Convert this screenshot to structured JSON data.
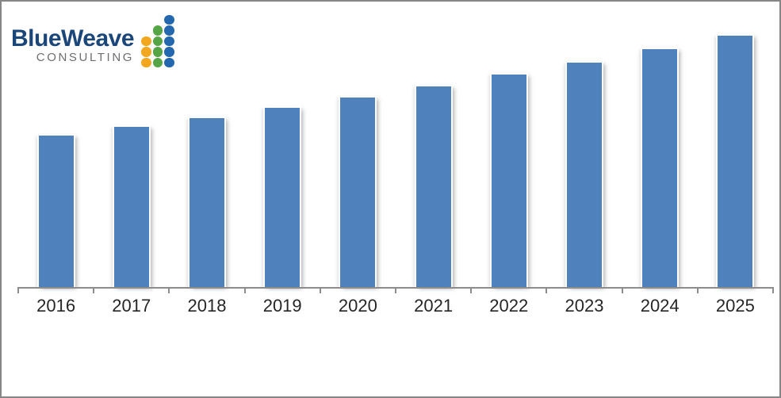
{
  "page": {
    "background": "#ffffff",
    "frame_border_color": "#868686"
  },
  "logo": {
    "brand": "BlueWeave",
    "tagline": "CONSULTING",
    "brand_color": "#1b4679",
    "tagline_color": "#6d6e71",
    "dot_columns": [
      {
        "name": "orange-column",
        "color": "#f2a71e",
        "dots": 3
      },
      {
        "name": "green-column",
        "color": "#55a546",
        "dots": 4
      },
      {
        "name": "blue-column",
        "color": "#2368ae",
        "dots": 5
      }
    ]
  },
  "chart_data": {
    "type": "bar",
    "title": "",
    "xlabel": "",
    "ylabel": "",
    "categories": [
      "2016",
      "2017",
      "2018",
      "2019",
      "2020",
      "2021",
      "2022",
      "2023",
      "2024",
      "2025"
    ],
    "values": [
      191,
      202,
      213,
      226,
      239,
      253,
      268,
      283,
      300,
      317
    ],
    "ylim": [
      0,
      330
    ],
    "value_axis_labeled": false,
    "gridlines": false,
    "legend": false,
    "bar_color": "#4f81bd",
    "axis_color": "#8c8c8c",
    "label_color": "#262626"
  }
}
